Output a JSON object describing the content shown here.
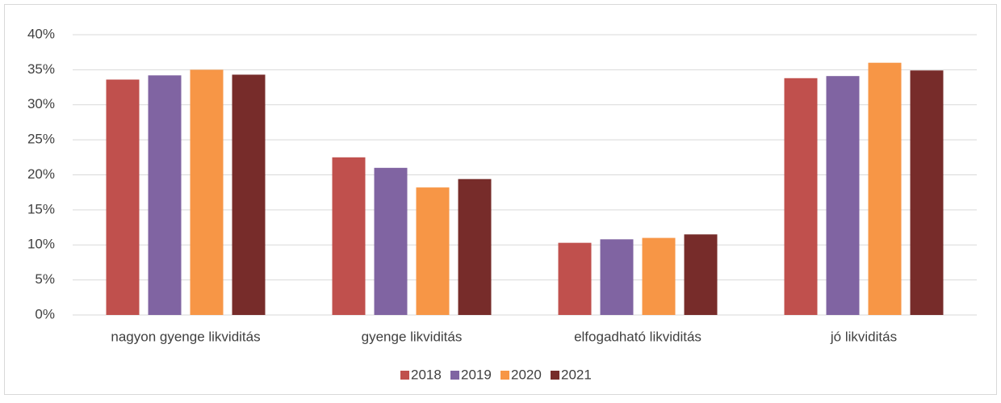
{
  "chart_data": {
    "type": "bar",
    "categories": [
      "nagyon gyenge likviditás",
      "gyenge likviditás",
      "elfogadható likviditás",
      "jó likviditás"
    ],
    "series": [
      {
        "name": "2018",
        "color": "#c0504d",
        "values": [
          33.6,
          22.5,
          10.3,
          33.8
        ]
      },
      {
        "name": "2019",
        "color": "#8064a2",
        "values": [
          34.2,
          21.0,
          10.8,
          34.1
        ]
      },
      {
        "name": "2020",
        "color": "#f79646",
        "values": [
          35.0,
          18.2,
          11.0,
          36.0
        ]
      },
      {
        "name": "2021",
        "color": "#772c2a",
        "values": [
          34.3,
          19.4,
          11.5,
          34.9
        ]
      }
    ],
    "ylim": [
      0,
      40
    ],
    "yticks": [
      {
        "value": 0,
        "label": "0%"
      },
      {
        "value": 5,
        "label": "5%"
      },
      {
        "value": 10,
        "label": "10%"
      },
      {
        "value": 15,
        "label": "15%"
      },
      {
        "value": 20,
        "label": "20%"
      },
      {
        "value": 25,
        "label": "25%"
      },
      {
        "value": 30,
        "label": "30%"
      },
      {
        "value": 35,
        "label": "35%"
      },
      {
        "value": 40,
        "label": "40%"
      }
    ],
    "grid": true,
    "legend": "bottom"
  }
}
